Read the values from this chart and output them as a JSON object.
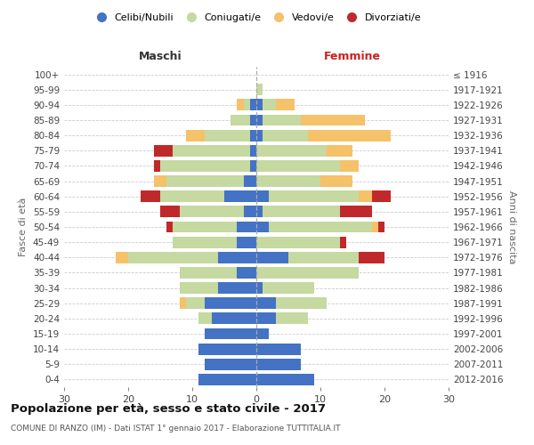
{
  "age_groups": [
    "0-4",
    "5-9",
    "10-14",
    "15-19",
    "20-24",
    "25-29",
    "30-34",
    "35-39",
    "40-44",
    "45-49",
    "50-54",
    "55-59",
    "60-64",
    "65-69",
    "70-74",
    "75-79",
    "80-84",
    "85-89",
    "90-94",
    "95-99",
    "100+"
  ],
  "birth_years": [
    "2012-2016",
    "2007-2011",
    "2002-2006",
    "1997-2001",
    "1992-1996",
    "1987-1991",
    "1982-1986",
    "1977-1981",
    "1972-1976",
    "1967-1971",
    "1962-1966",
    "1957-1961",
    "1952-1956",
    "1947-1951",
    "1942-1946",
    "1937-1941",
    "1932-1936",
    "1927-1931",
    "1922-1926",
    "1917-1921",
    "≤ 1916"
  ],
  "males": {
    "celibi": [
      9,
      8,
      9,
      8,
      7,
      8,
      6,
      3,
      6,
      3,
      3,
      2,
      5,
      2,
      1,
      1,
      1,
      1,
      1,
      0,
      0
    ],
    "coniugati": [
      0,
      0,
      0,
      0,
      2,
      3,
      6,
      9,
      14,
      10,
      10,
      10,
      10,
      12,
      14,
      12,
      7,
      3,
      1,
      0,
      0
    ],
    "vedovi": [
      0,
      0,
      0,
      0,
      0,
      1,
      0,
      0,
      2,
      0,
      0,
      0,
      0,
      2,
      0,
      0,
      3,
      0,
      1,
      0,
      0
    ],
    "divorziati": [
      0,
      0,
      0,
      0,
      0,
      0,
      0,
      0,
      0,
      0,
      1,
      3,
      3,
      0,
      1,
      3,
      0,
      0,
      0,
      0,
      0
    ]
  },
  "females": {
    "celibi": [
      9,
      7,
      7,
      2,
      3,
      3,
      1,
      0,
      5,
      0,
      2,
      1,
      2,
      0,
      0,
      0,
      1,
      1,
      1,
      0,
      0
    ],
    "coniugati": [
      0,
      0,
      0,
      0,
      5,
      8,
      8,
      16,
      11,
      13,
      16,
      12,
      14,
      10,
      13,
      11,
      7,
      6,
      2,
      1,
      0
    ],
    "vedovi": [
      0,
      0,
      0,
      0,
      0,
      0,
      0,
      0,
      0,
      0,
      1,
      0,
      2,
      5,
      3,
      4,
      13,
      10,
      3,
      0,
      0
    ],
    "divorziati": [
      0,
      0,
      0,
      0,
      0,
      0,
      0,
      0,
      4,
      1,
      1,
      5,
      3,
      0,
      0,
      0,
      0,
      0,
      0,
      0,
      0
    ]
  },
  "colors": {
    "celibi": "#4472c4",
    "coniugati": "#c5d9a0",
    "vedovi": "#f5c169",
    "divorziati": "#c0292b"
  },
  "xlim": 30,
  "title": "Popolazione per età, sesso e stato civile - 2017",
  "subtitle": "COMUNE DI RANZO (IM) - Dati ISTAT 1° gennaio 2017 - Elaborazione TUTTITALIA.IT",
  "ylabel_left": "Fasce di età",
  "ylabel_right": "Anni di nascita",
  "legend_labels": [
    "Celibi/Nubili",
    "Coniugati/e",
    "Vedovi/e",
    "Divorziati/e"
  ],
  "maschi_label": "Maschi",
  "femmine_label": "Femmine",
  "background_color": "#ffffff",
  "grid_color": "#cccccc"
}
